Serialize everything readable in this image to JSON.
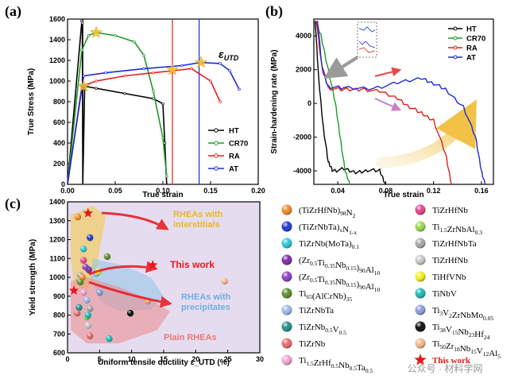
{
  "panel_labels": {
    "a": "(a)",
    "b": "(b)",
    "c": "(c)"
  },
  "chart_data": [
    {
      "type": "line",
      "panel": "(a)",
      "xlabel": "True strain",
      "ylabel": "True Stress (MPa)",
      "xlim": [
        0,
        0.2
      ],
      "ylim": [
        0,
        1600
      ],
      "xticks": [
        "0.00",
        "0.05",
        "0.10",
        "0.15",
        "0.20"
      ],
      "yticks": [
        "0",
        "200",
        "400",
        "600",
        "800",
        "1000",
        "1200",
        "1400",
        "1600"
      ],
      "annotation": "ε_UTD",
      "legend_position": "bottom-right",
      "series": [
        {
          "name": "HT",
          "color": "#000000",
          "points": [
            [
              0,
              0
            ],
            [
              0.015,
              1580
            ],
            [
              0.0155,
              1560
            ],
            [
              0.016,
              0
            ],
            [
              0.018,
              950
            ],
            [
              0.03,
              930
            ],
            [
              0.06,
              880
            ],
            [
              0.09,
              830
            ],
            [
              0.1,
              780
            ],
            [
              0.102,
              400
            ],
            [
              0.104,
              0
            ]
          ]
        },
        {
          "name": "CR70",
          "color": "#1f9a2b",
          "points": [
            [
              0,
              0
            ],
            [
              0.015,
              1300
            ],
            [
              0.022,
              1440
            ],
            [
              0.03,
              1470
            ],
            [
              0.05,
              1440
            ],
            [
              0.07,
              1380
            ],
            [
              0.08,
              1250
            ],
            [
              0.09,
              900
            ],
            [
              0.1,
              450
            ],
            [
              0.104,
              80
            ]
          ]
        },
        {
          "name": "RA",
          "color": "#e0201b",
          "points": [
            [
              0,
              0
            ],
            [
              0.015,
              950
            ],
            [
              0.03,
              1000
            ],
            [
              0.06,
              1050
            ],
            [
              0.09,
              1080
            ],
            [
              0.11,
              1100
            ],
            [
              0.13,
              1120
            ],
            [
              0.15,
              1000
            ],
            [
              0.16,
              800
            ]
          ]
        },
        {
          "name": "AT",
          "color": "#1c2bd8",
          "points": [
            [
              0,
              0
            ],
            [
              0.017,
              1050
            ],
            [
              0.04,
              1080
            ],
            [
              0.08,
              1120
            ],
            [
              0.12,
              1150
            ],
            [
              0.14,
              1180
            ],
            [
              0.16,
              1170
            ],
            [
              0.17,
              1100
            ],
            [
              0.18,
              920
            ]
          ]
        }
      ],
      "utd_markers": [
        [
          0.017,
          950
        ],
        [
          0.03,
          1470
        ],
        [
          0.11,
          1110
        ],
        [
          0.14,
          1180
        ]
      ],
      "vertical_strain_lines": [
        0.016,
        0.11,
        0.138
      ]
    },
    {
      "type": "line",
      "panel": "(b)",
      "xlabel": "True strain",
      "ylabel": "Strain-hardening rate (MPa)",
      "xlim": [
        0.02,
        0.17
      ],
      "ylim": [
        -4800,
        5000
      ],
      "xticks": [
        "0.04",
        "0.08",
        "0.12",
        "0.16"
      ],
      "yticks": [
        "-4000",
        "-2000",
        "0",
        "2000",
        "4000"
      ],
      "legend_position": "top-right",
      "series": [
        {
          "name": "HT",
          "color": "#000000",
          "points": [
            [
              0.021,
              5000
            ],
            [
              0.024,
              1500
            ],
            [
              0.028,
              -1500
            ],
            [
              0.032,
              -3500
            ],
            [
              0.036,
              -4000
            ],
            [
              0.045,
              -3900
            ],
            [
              0.055,
              -4100
            ],
            [
              0.065,
              -3950
            ],
            [
              0.075,
              -4000
            ],
            [
              0.08,
              -4800
            ]
          ]
        },
        {
          "name": "CR70",
          "color": "#1f9a2b",
          "points": [
            [
              0.021,
              5000
            ],
            [
              0.026,
              4000
            ],
            [
              0.032,
              2000
            ],
            [
              0.038,
              0
            ],
            [
              0.042,
              -2000
            ],
            [
              0.046,
              -4000
            ],
            [
              0.05,
              -4800
            ]
          ]
        },
        {
          "name": "RA",
          "color": "#e0201b",
          "points": [
            [
              0.022,
              5000
            ],
            [
              0.026,
              2500
            ],
            [
              0.032,
              900
            ],
            [
              0.045,
              800
            ],
            [
              0.06,
              850
            ],
            [
              0.075,
              700
            ],
            [
              0.09,
              300
            ],
            [
              0.1,
              -200
            ],
            [
              0.11,
              -600
            ],
            [
              0.12,
              -1000
            ],
            [
              0.13,
              -3000
            ],
            [
              0.135,
              -4800
            ]
          ]
        },
        {
          "name": "AT",
          "color": "#1c2bd8",
          "points": [
            [
              0.023,
              5000
            ],
            [
              0.027,
              2000
            ],
            [
              0.032,
              1000
            ],
            [
              0.045,
              900
            ],
            [
              0.07,
              900
            ],
            [
              0.09,
              1200
            ],
            [
              0.11,
              1500
            ],
            [
              0.12,
              1200
            ],
            [
              0.13,
              800
            ],
            [
              0.145,
              -200
            ],
            [
              0.155,
              -2000
            ],
            [
              0.16,
              -4000
            ],
            [
              0.163,
              -4800
            ]
          ]
        }
      ]
    },
    {
      "type": "scatter",
      "panel": "(c)",
      "xlabel": "Uniform tensile ductility ε_UTD (%)",
      "ylabel": "Yield strength (MPa)",
      "xlim": [
        0,
        30
      ],
      "ylim": [
        600,
        1400
      ],
      "xticks": [
        "0",
        "5",
        "10",
        "15",
        "20",
        "25",
        "30"
      ],
      "yticks": [
        "600",
        "700",
        "800",
        "900",
        "1000",
        "1100",
        "1200",
        "1300",
        "1400"
      ],
      "regions": [
        {
          "label": "RHEAs with interstitials",
          "color": "#f2c93a"
        },
        {
          "label": "RHEAs with precipitates",
          "color": "#8ec7ea"
        },
        {
          "label": "Plain RHEAs",
          "color": "#eb8a8a"
        }
      ],
      "this_work_label": "This work",
      "this_work_points": [
        [
          3.2,
          1340
        ],
        [
          13.3,
          1065
        ],
        [
          1.0,
          930
        ]
      ],
      "points": [
        {
          "series": "(TiZrHfNb)98N2",
          "x": 1.6,
          "y": 1320,
          "color": "#f28a2a"
        },
        {
          "series": "(TiZrNbTa)xN1-x",
          "x": 3.5,
          "y": 1210,
          "color": "#1e38d0"
        },
        {
          "series": "TiZrNb(MoTa)0.1",
          "x": 2.5,
          "y": 1150,
          "color": "#28c8d8"
        },
        {
          "series": "(Zr0.5Ti0.35Nb0.15)90Al10",
          "x": 3.3,
          "y": 1040,
          "color": "#7b2aa8"
        },
        {
          "series": "(Zr0.5Ti0.35Nb0.15)90Al10",
          "x": 2.8,
          "y": 1055,
          "color": "#8e3cc8"
        },
        {
          "series": "Ti65(AlCrNb)35",
          "x": 6.2,
          "y": 1110,
          "color": "#5a8f2a"
        },
        {
          "series": "TiZrNbTa",
          "x": 4.5,
          "y": 1020,
          "color": "#9dbbe8"
        },
        {
          "series": "TiZrNb0.5V0.5",
          "x": 1.8,
          "y": 840,
          "color": "#1d8f8c"
        },
        {
          "series": "TiZrNb",
          "x": 1.5,
          "y": 810,
          "color": "#e86a6a"
        },
        {
          "series": "Ti1.5ZrHf0.5Nb0.5Ta0.5",
          "x": 2.5,
          "y": 920,
          "color": "#f2a4d2"
        },
        {
          "series": "TiZrHfNb",
          "x": 2.5,
          "y": 1090,
          "color": "#e8408c"
        },
        {
          "series": "Ti1.5ZrNbAl0.3",
          "x": 3.0,
          "y": 790,
          "color": "#9ad84a"
        },
        {
          "series": "TiZrHfNbTa",
          "x": 2.0,
          "y": 1010,
          "color": "#a6a6a6"
        },
        {
          "series": "TiZrHfNb",
          "x": 3.2,
          "y": 745,
          "color": "#c8c8c8"
        },
        {
          "series": "TiHfVNb",
          "x": 4.8,
          "y": 1030,
          "color": "#f5f01a"
        },
        {
          "series": "TiNbV",
          "x": 3.2,
          "y": 800,
          "color": "#18b8b8"
        },
        {
          "series": "Ti3V2ZrNbMo0.05",
          "x": 1.9,
          "y": 985,
          "color": "#8a9cd8"
        },
        {
          "series": "Ti38V15Nb23Hf24",
          "x": 9.8,
          "y": 810,
          "color": "#0a0a0a"
        },
        {
          "series": "Ti50Zr18Nb15V12Al5",
          "x": 24.5,
          "y": 980,
          "color": "#f4b88a"
        },
        {
          "series": "Ti50Zr18Nb15V12Al5",
          "x": 12.5,
          "y": 875,
          "color": "#f0a878"
        },
        {
          "series": "(TiZrHfNb)98N2",
          "x": 2.3,
          "y": 1000,
          "color": "#f28a2a"
        },
        {
          "series": "TiZrNbTa",
          "x": 3.0,
          "y": 880,
          "color": "#9dbbe8"
        },
        {
          "series": "TiZrHfNbTa",
          "x": 3.5,
          "y": 835,
          "color": "#a6a6a6"
        },
        {
          "series": "Ti65(AlCrNb)35",
          "x": 2.0,
          "y": 975,
          "color": "#5a8f2a"
        },
        {
          "series": "TiZrNb",
          "x": 3.5,
          "y": 690,
          "color": "#e86a6a"
        },
        {
          "series": "Ti3V2ZrNbMo0.05",
          "x": 5.0,
          "y": 920,
          "color": "#8a9cd8"
        },
        {
          "series": "TiNbV",
          "x": 6.5,
          "y": 675,
          "color": "#18b8b8"
        }
      ]
    }
  ],
  "material_legend": [
    {
      "parts": [
        {
          "t": "(TiZrHfNb)"
        },
        {
          "t": "98",
          "sub": true
        },
        {
          "t": "N"
        },
        {
          "t": "2",
          "sub": true
        }
      ],
      "color": "#f28a2a",
      "marker": "ball"
    },
    {
      "parts": [
        {
          "t": "TiZrHfNb"
        }
      ],
      "color": "#e8408c",
      "marker": "ball"
    },
    {
      "parts": [
        {
          "t": "(TiZrNbTa)"
        },
        {
          "t": "x",
          "sub": true
        },
        {
          "t": "N"
        },
        {
          "t": "1-x",
          "sub": true
        }
      ],
      "color": "#1e38d0",
      "marker": "ball"
    },
    {
      "parts": [
        {
          "t": "Ti"
        },
        {
          "t": "1.5",
          "sub": true
        },
        {
          "t": "ZrNbAl"
        },
        {
          "t": "0.3",
          "sub": true
        }
      ],
      "color": "#9ad84a",
      "marker": "ball"
    },
    {
      "parts": [
        {
          "t": "TiZrNb(MoTa)"
        },
        {
          "t": "0.1",
          "sub": true
        }
      ],
      "color": "#28c8d8",
      "marker": "ball"
    },
    {
      "parts": [
        {
          "t": "TiZrHfNbTa"
        }
      ],
      "color": "#a6a6a6",
      "marker": "ball"
    },
    {
      "parts": [
        {
          "t": "(Zr"
        },
        {
          "t": "0.5",
          "sub": true
        },
        {
          "t": "Ti"
        },
        {
          "t": "0.35",
          "sub": true
        },
        {
          "t": "Nb"
        },
        {
          "t": "0.15",
          "sub": true
        },
        {
          "t": ")"
        },
        {
          "t": "90",
          "sub": true
        },
        {
          "t": "Al"
        },
        {
          "t": "10",
          "sub": true
        }
      ],
      "color": "#7b2aa8",
      "marker": "ball"
    },
    {
      "parts": [
        {
          "t": "TiZrHfNb"
        }
      ],
      "color": "#c8c8c8",
      "marker": "ball"
    },
    {
      "parts": [
        {
          "t": "(Zr"
        },
        {
          "t": "0.5",
          "sub": true
        },
        {
          "t": "Ti"
        },
        {
          "t": "0.35",
          "sub": true
        },
        {
          "t": "Nb"
        },
        {
          "t": "0.15",
          "sub": true
        },
        {
          "t": ")"
        },
        {
          "t": "90",
          "sub": true
        },
        {
          "t": "Al"
        },
        {
          "t": "10",
          "sub": true
        }
      ],
      "color": "#8e3cc8",
      "marker": "ball"
    },
    {
      "parts": [
        {
          "t": "TiHfVNb"
        }
      ],
      "color": "#f5f01a",
      "marker": "ball"
    },
    {
      "parts": [
        {
          "t": "Ti"
        },
        {
          "t": "65",
          "sub": true
        },
        {
          "t": "(AlCrNb)"
        },
        {
          "t": "35",
          "sub": true
        }
      ],
      "color": "#5a8f2a",
      "marker": "ball"
    },
    {
      "parts": [
        {
          "t": "TiNbV"
        }
      ],
      "color": "#18b8b8",
      "marker": "ball"
    },
    {
      "parts": [
        {
          "t": "TiZrNbTa"
        }
      ],
      "color": "#9dbbe8",
      "marker": "ball"
    },
    {
      "parts": [
        {
          "t": "Ti"
        },
        {
          "t": "3",
          "sub": true
        },
        {
          "t": "V"
        },
        {
          "t": "2",
          "sub": true
        },
        {
          "t": "ZrNbMo"
        },
        {
          "t": "0.05",
          "sub": true
        }
      ],
      "color": "#8a9cd8",
      "marker": "ball"
    },
    {
      "parts": [
        {
          "t": "TiZrNb"
        },
        {
          "t": "0.5",
          "sub": true
        },
        {
          "t": "V"
        },
        {
          "t": "0.5",
          "sub": true
        }
      ],
      "color": "#1d8f8c",
      "marker": "ball"
    },
    {
      "parts": [
        {
          "t": "Ti"
        },
        {
          "t": "38",
          "sub": true
        },
        {
          "t": "V"
        },
        {
          "t": "15",
          "sub": true
        },
        {
          "t": "Nb"
        },
        {
          "t": "23",
          "sub": true
        },
        {
          "t": "Hf"
        },
        {
          "t": "24",
          "sub": true
        }
      ],
      "color": "#0a0a0a",
      "marker": "ball"
    },
    {
      "parts": [
        {
          "t": "TiZrNb"
        }
      ],
      "color": "#e86a6a",
      "marker": "ball"
    },
    {
      "parts": [
        {
          "t": "Ti"
        },
        {
          "t": "50",
          "sub": true
        },
        {
          "t": "Zr"
        },
        {
          "t": "18",
          "sub": true
        },
        {
          "t": "Nb"
        },
        {
          "t": "15",
          "sub": true
        },
        {
          "t": "V"
        },
        {
          "t": "12",
          "sub": true
        },
        {
          "t": "Al"
        },
        {
          "t": "5",
          "sub": true
        }
      ],
      "color": "#f4b88a",
      "marker": "ball"
    },
    {
      "parts": [
        {
          "t": "Ti"
        },
        {
          "t": "1.5",
          "sub": true
        },
        {
          "t": "ZrHf"
        },
        {
          "t": "0.5",
          "sub": true
        },
        {
          "t": "Nb"
        },
        {
          "t": "0.5",
          "sub": true
        },
        {
          "t": "Ta"
        },
        {
          "t": "0.5",
          "sub": true
        }
      ],
      "color": "#f2a4d2",
      "marker": "ball"
    },
    {
      "parts": [
        {
          "t": "This work",
          "red": true
        }
      ],
      "color": "#e8161b",
      "marker": "star"
    }
  ],
  "watermark": "公众号 · 材料学网",
  "colors": {
    "ht": "#000000",
    "cr70": "#1f9a2b",
    "ra": "#e0201b",
    "at": "#1c2bd8",
    "star": "#f2c230"
  }
}
